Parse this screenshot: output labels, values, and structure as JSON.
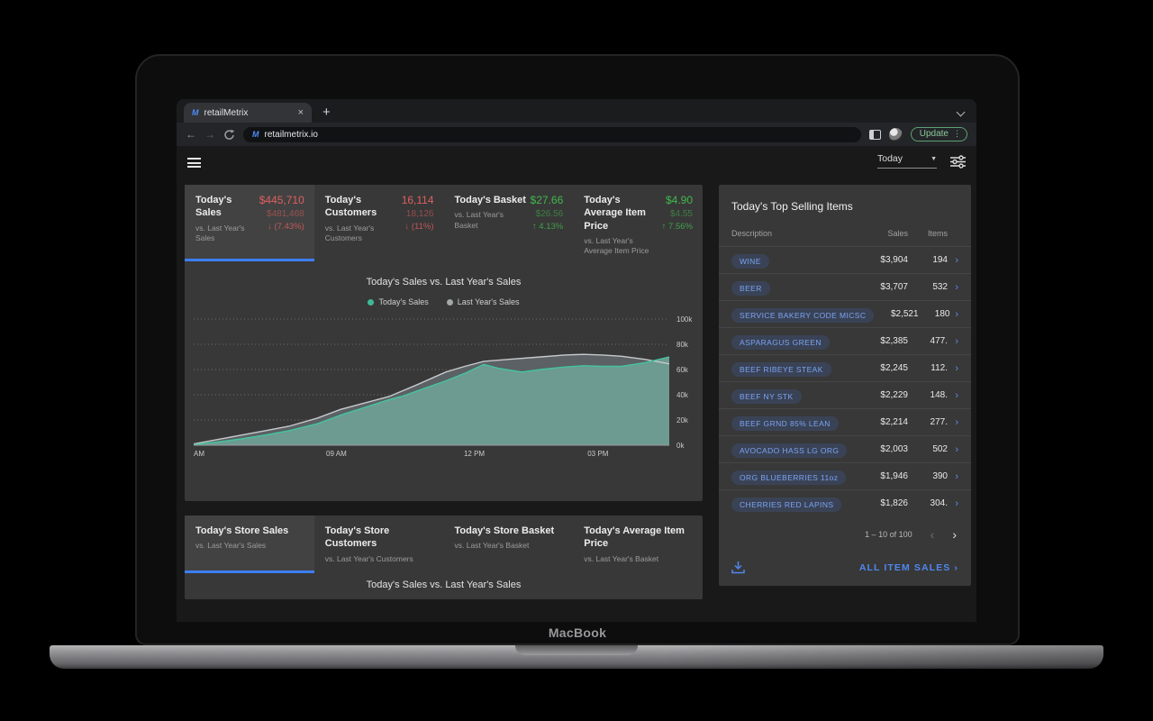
{
  "browser": {
    "tab_title": "retailMetrix",
    "favicon_glyph": "M",
    "url": "retailmetrix.io",
    "update_label": "Update"
  },
  "app_toolbar": {
    "period": "Today"
  },
  "kpi_cards": [
    {
      "title": "Today's Sales",
      "subtitle": "vs. Last Year's Sales",
      "value": "$445,710",
      "previous": "$481,468",
      "delta": "(7.43%)",
      "trend": "down",
      "active": true
    },
    {
      "title": "Today's Customers",
      "subtitle": "vs. Last Year's Customers",
      "value": "16,114",
      "previous": "18,126",
      "delta": "(11%)",
      "trend": "down",
      "active": false
    },
    {
      "title": "Today's Basket",
      "subtitle": "vs. Last Year's Basket",
      "value": "$27.66",
      "previous": "$26.56",
      "delta": "4.13%",
      "trend": "up",
      "active": false
    },
    {
      "title": "Today's Average Item Price",
      "subtitle": "vs. Last Year's Average Item Price",
      "value": "$4.90",
      "previous": "$4.55",
      "delta": "7.56%",
      "trend": "up",
      "active": false
    }
  ],
  "chart_data": {
    "type": "area",
    "title": "Today's Sales vs. Last Year's Sales",
    "ylim": [
      0,
      100
    ],
    "y_ticks": [
      {
        "value": 0,
        "label": "0k"
      },
      {
        "value": 20,
        "label": "20k"
      },
      {
        "value": 40,
        "label": "40k"
      },
      {
        "value": 60,
        "label": "60k"
      },
      {
        "value": 80,
        "label": "80k"
      },
      {
        "value": 100,
        "label": "100k"
      }
    ],
    "x_ticks": [
      {
        "pos": 0.0,
        "label": "AM"
      },
      {
        "pos": 0.3,
        "label": "09 AM"
      },
      {
        "pos": 0.59,
        "label": "12 PM"
      },
      {
        "pos": 0.85,
        "label": "03 PM"
      }
    ],
    "legend": [
      {
        "label": "Today's Sales",
        "color": "#3fb89a"
      },
      {
        "label": "Last Year's Sales",
        "color": "#a3a7aa"
      }
    ],
    "series": [
      {
        "name": "Today's Sales",
        "line": "#45c4a0",
        "fill": "#6d9a91",
        "points": [
          [
            0,
            0.5
          ],
          [
            0.05,
            2.5
          ],
          [
            0.1,
            5
          ],
          [
            0.15,
            8
          ],
          [
            0.2,
            11.5
          ],
          [
            0.26,
            17
          ],
          [
            0.31,
            24
          ],
          [
            0.36,
            30
          ],
          [
            0.41,
            36
          ],
          [
            0.44,
            39
          ],
          [
            0.47,
            43
          ],
          [
            0.5,
            47
          ],
          [
            0.53,
            51
          ],
          [
            0.57,
            57
          ],
          [
            0.61,
            64
          ],
          [
            0.64,
            61
          ],
          [
            0.69,
            58
          ],
          [
            0.73,
            60
          ],
          [
            0.78,
            62
          ],
          [
            0.82,
            63
          ],
          [
            0.86,
            62.5
          ],
          [
            0.9,
            62.5
          ],
          [
            0.95,
            65.5
          ],
          [
            1,
            70
          ]
        ]
      },
      {
        "name": "Last Year's Sales",
        "line": "#c6c9cb",
        "fill": "#5b6165",
        "points": [
          [
            0,
            1
          ],
          [
            0.05,
            4.5
          ],
          [
            0.1,
            8
          ],
          [
            0.15,
            11.5
          ],
          [
            0.2,
            15
          ],
          [
            0.26,
            21.5
          ],
          [
            0.31,
            28.5
          ],
          [
            0.36,
            33.5
          ],
          [
            0.41,
            38.5
          ],
          [
            0.47,
            48
          ],
          [
            0.53,
            58
          ],
          [
            0.57,
            62.5
          ],
          [
            0.61,
            66.5
          ],
          [
            0.66,
            68
          ],
          [
            0.73,
            70
          ],
          [
            0.78,
            71.5
          ],
          [
            0.82,
            72
          ],
          [
            0.86,
            71.5
          ],
          [
            0.9,
            70.5
          ],
          [
            0.95,
            68
          ],
          [
            1,
            64.5
          ]
        ]
      }
    ]
  },
  "top_items": {
    "title": "Today's Top Selling Items",
    "columns": [
      "Description",
      "Sales",
      "Items"
    ],
    "rows": [
      {
        "name": "WINE",
        "sales": "$3,904",
        "items": "194"
      },
      {
        "name": "BEER",
        "sales": "$3,707",
        "items": "532"
      },
      {
        "name": "SERVICE BAKERY CODE MICSC",
        "sales": "$2,521",
        "items": "180"
      },
      {
        "name": "ASPARAGUS GREEN",
        "sales": "$2,385",
        "items": "477."
      },
      {
        "name": "BEEF RIBEYE STEAK",
        "sales": "$2,245",
        "items": "112."
      },
      {
        "name": "BEEF NY STK",
        "sales": "$2,229",
        "items": "148."
      },
      {
        "name": "BEEF GRND 85% LEAN",
        "sales": "$2,214",
        "items": "277."
      },
      {
        "name": "AVOCADO HASS LG ORG",
        "sales": "$2,003",
        "items": "502"
      },
      {
        "name": "ORG BLUEBERRIES 11oz",
        "sales": "$1,946",
        "items": "390"
      },
      {
        "name": "CHERRIES RED LAPINS",
        "sales": "$1,826",
        "items": "304."
      }
    ],
    "pagination": "1 – 10 of 100",
    "footer_link": "ALL ITEM SALES"
  },
  "bottom_tabs": [
    {
      "title": "Today's Store Sales",
      "subtitle": "vs. Last Year's Sales",
      "active": true
    },
    {
      "title": "Today's Store Customers",
      "subtitle": "vs. Last Year's Customers",
      "active": false
    },
    {
      "title": "Today's Store Basket",
      "subtitle": "vs. Last Year's Basket",
      "active": false
    },
    {
      "title": "Today's Average Item Price",
      "subtitle": "vs. Last Year's Basket",
      "active": false
    }
  ],
  "bottom_title": "Today's Sales vs. Last Year's Sales",
  "device_label": "MacBook"
}
